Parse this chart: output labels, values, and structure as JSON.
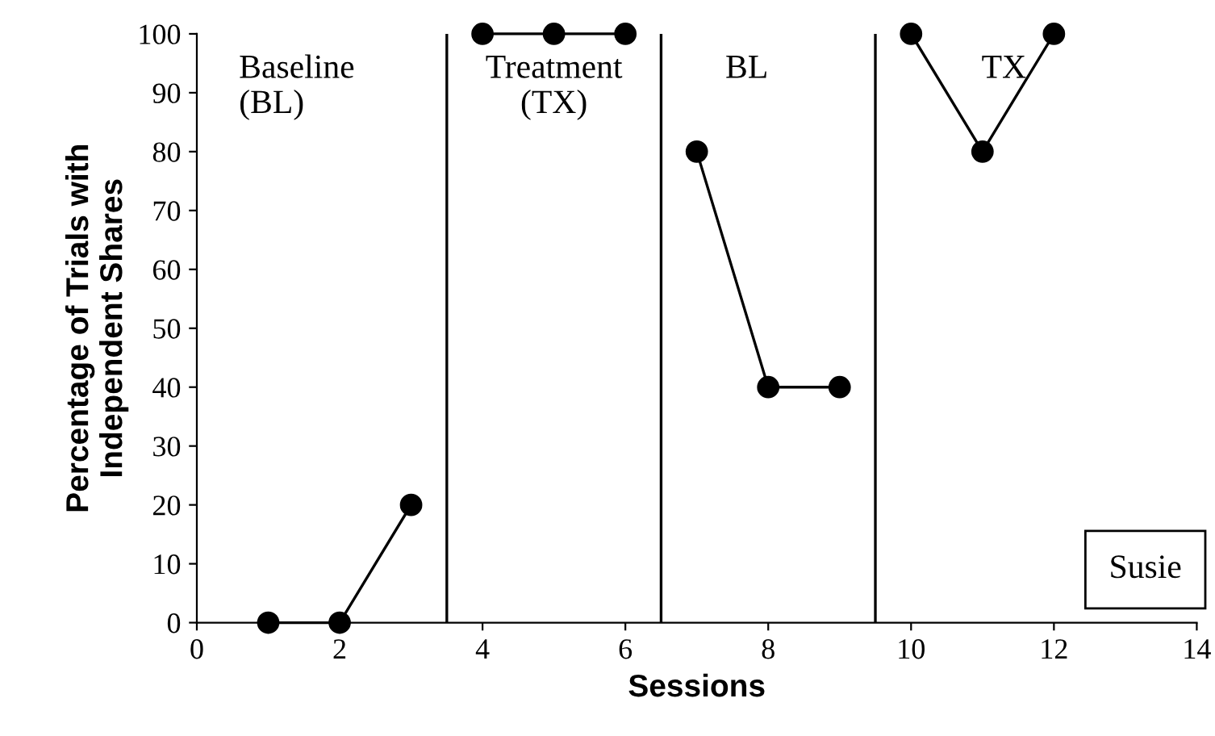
{
  "chart_data": {
    "type": "line",
    "xlabel": "Sessions",
    "ylabel": "Percentage of Trials with\nIndependent Shares",
    "series": [
      {
        "color": "#000000",
        "x": [
          1,
          2,
          3
        ],
        "values": [
          0,
          0,
          20
        ]
      },
      {
        "color": "#000000",
        "x": [
          4,
          5,
          6
        ],
        "values": [
          100,
          100,
          100
        ]
      },
      {
        "color": "#000000",
        "x": [
          7,
          8,
          9
        ],
        "values": [
          80,
          40,
          40
        ]
      },
      {
        "color": "#000000",
        "x": [
          10,
          11,
          12
        ],
        "values": [
          100,
          80,
          100
        ]
      }
    ],
    "marker": "circle",
    "line_style": "solid",
    "xlim": [
      0,
      14
    ],
    "xticks": [
      0,
      2,
      4,
      6,
      8,
      10,
      12,
      14
    ],
    "ylim": [
      0,
      100
    ],
    "yticks": [
      0,
      10,
      20,
      30,
      40,
      50,
      60,
      70,
      80,
      90,
      100
    ],
    "grid": false,
    "legend": false,
    "ref_lines": [
      {
        "axis": "x",
        "value": 3.5,
        "color": "#000000",
        "line_style": "solid"
      },
      {
        "axis": "x",
        "value": 6.5,
        "color": "#000000",
        "line_style": "solid"
      },
      {
        "axis": "x",
        "value": 9.5,
        "color": "#000000",
        "line_style": "solid"
      }
    ],
    "annotations": [
      "Baseline\n(BL)",
      "Treatment\n(TX)",
      "BL",
      "TX",
      "Susie"
    ]
  }
}
